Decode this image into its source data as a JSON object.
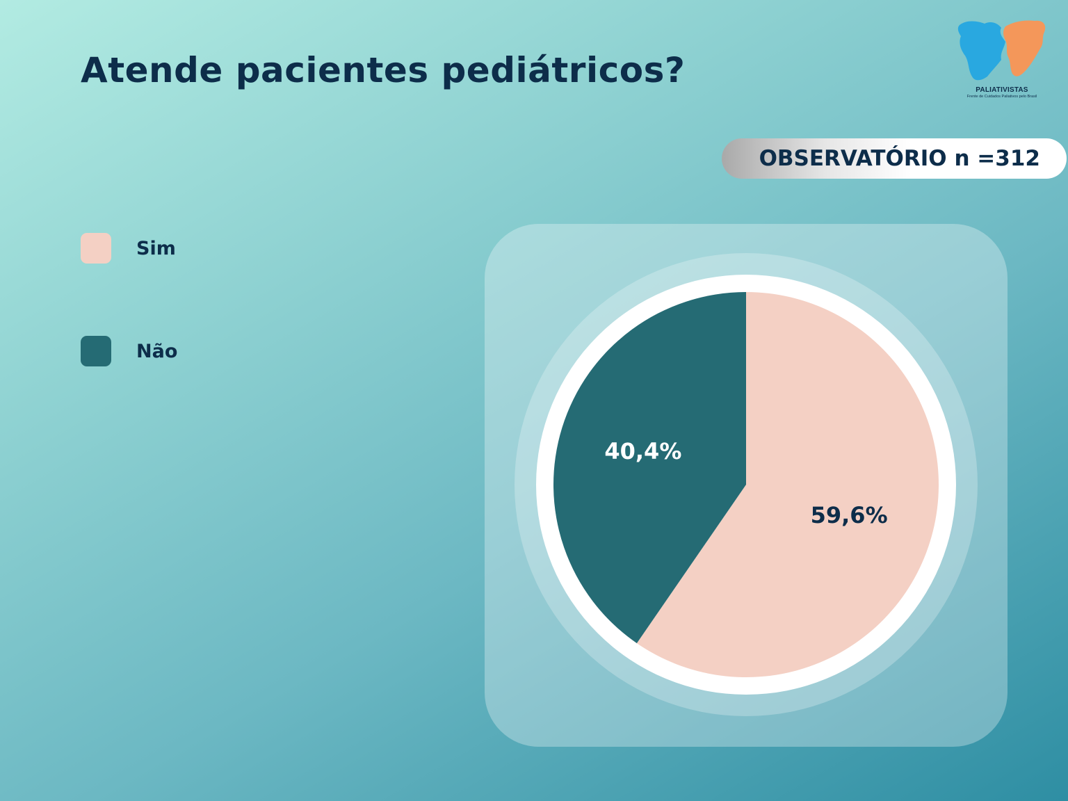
{
  "title": "Atende pacientes pediátricos?",
  "badge": "OBSERVATÓRIO n =312",
  "logo": {
    "name": "PALIATIVISTAS",
    "tagline": "Frente de Cuidados Paliativos pelo Brasil",
    "colors": {
      "blue": "#29a8e0",
      "orange": "#f4975a"
    }
  },
  "chart_data": {
    "type": "pie",
    "title": "Atende pacientes pediátricos?",
    "categories": [
      "Sim",
      "Não"
    ],
    "values": [
      59.6,
      40.4
    ],
    "labels": [
      "59,6%",
      "40,4%"
    ],
    "colors": [
      "#f4d0c4",
      "#256b74"
    ],
    "label_colors": [
      "#0d2d4a",
      "#ffffff"
    ],
    "legend_position": "left",
    "start_angle": "top, clockwise"
  }
}
